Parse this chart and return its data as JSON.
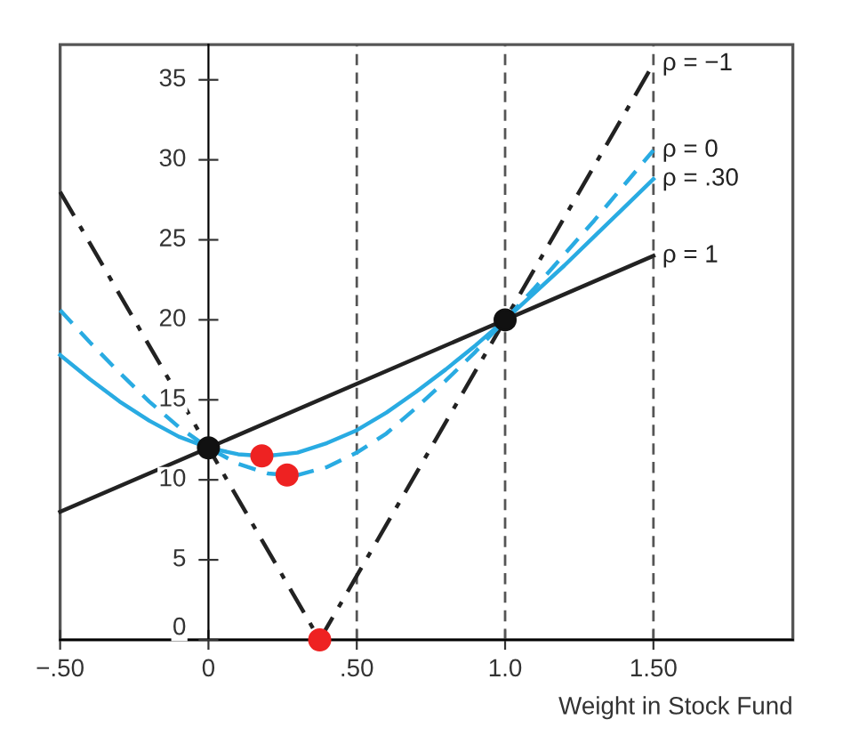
{
  "chart_data": {
    "type": "line",
    "xlabel": "Weight in Stock Fund",
    "xlim": [
      -0.5,
      1.97
    ],
    "ylim": [
      0,
      37.2
    ],
    "xticks": [
      {
        "value": -0.5,
        "label": "−.50"
      },
      0,
      {
        "value": 0.5,
        "label": ".50"
      },
      {
        "value": 1.0,
        "label": "1.0"
      },
      {
        "value": 1.5,
        "label": "1.50"
      }
    ],
    "yticks": [
      0,
      5,
      10,
      15,
      20,
      25,
      30,
      35
    ],
    "grid": false,
    "legend": false,
    "ref_lines": [
      {
        "axis": "x",
        "value": 0.5,
        "color": "#555555",
        "line_style": "dashed"
      },
      {
        "axis": "x",
        "value": 1.0,
        "color": "#555555",
        "line_style": "dashed"
      },
      {
        "axis": "x",
        "value": 1.5,
        "color": "#555555",
        "line_style": "dashed"
      }
    ],
    "series": [
      {
        "name": "ρ = −1",
        "color": "#222222",
        "line_style": "dashdot",
        "x": [
          -0.5,
          0.375,
          1.5
        ],
        "values": [
          28,
          0,
          36
        ]
      },
      {
        "name": "ρ = 0",
        "color": "#29abe2",
        "line_style": "dashed",
        "x": [
          -0.5,
          -0.4,
          -0.3,
          -0.2,
          -0.1,
          0,
          0.1,
          0.2,
          0.265,
          0.3,
          0.4,
          0.5,
          0.6,
          0.7,
          0.8,
          0.9,
          1.0,
          1.1,
          1.2,
          1.3,
          1.4,
          1.5
        ],
        "values": [
          20.6,
          18.6,
          16.7,
          14.9,
          13.3,
          12,
          11.0,
          10.4,
          10.3,
          10.3,
          10.8,
          11.7,
          12.9,
          14.5,
          16.2,
          18.0,
          20,
          22.0,
          24.1,
          26.2,
          28.4,
          30.6
        ]
      },
      {
        "name": "ρ = .30",
        "color": "#29abe2",
        "line_style": "solid",
        "x": [
          -0.5,
          -0.4,
          -0.3,
          -0.2,
          -0.1,
          0,
          0.1,
          0.18,
          0.2,
          0.3,
          0.4,
          0.5,
          0.6,
          0.7,
          0.8,
          0.9,
          1.0,
          1.1,
          1.2,
          1.3,
          1.4,
          1.5
        ],
        "values": [
          17.8,
          16.3,
          14.9,
          13.7,
          12.7,
          12,
          11.6,
          11.5,
          11.5,
          11.7,
          12.3,
          13.1,
          14.2,
          15.5,
          16.9,
          18.4,
          20,
          21.7,
          23.4,
          25.2,
          27.0,
          28.8
        ]
      },
      {
        "name": "ρ = 1",
        "color": "#222222",
        "line_style": "solid",
        "x": [
          -0.5,
          1.5
        ],
        "values": [
          8,
          24
        ]
      },
      {
        "type": "scatter",
        "color": "#111111",
        "marker": "circle",
        "x": [
          0,
          1.0
        ],
        "values": [
          12,
          20
        ]
      },
      {
        "type": "scatter",
        "color": "#ee2222",
        "marker": "circle",
        "x": [
          0.18,
          0.265,
          0.375
        ],
        "values": [
          11.5,
          10.3,
          0
        ]
      }
    ]
  }
}
